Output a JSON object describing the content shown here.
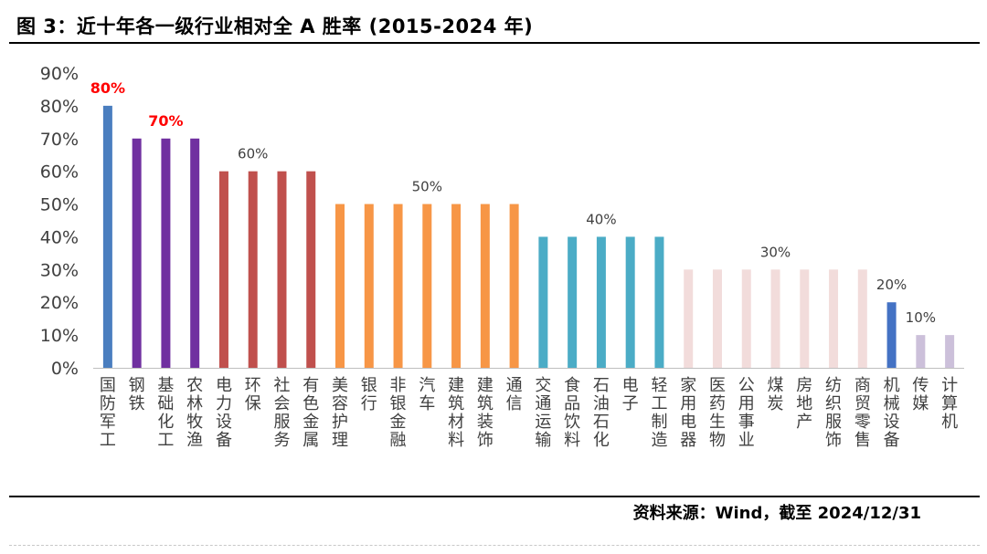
{
  "title": "图 3：近十年各一级行业相对全 A 胜率 (2015-2024 年)",
  "source": "资料来源：Wind，截至 2024/12/31",
  "chart_data": {
    "type": "bar",
    "title": "图 3：近十年各一级行业相对全 A 胜率 (2015-2024 年)",
    "xlabel": "",
    "ylabel": "",
    "ylim": [
      0,
      90
    ],
    "yticks": [
      "0%",
      "10%",
      "20%",
      "30%",
      "40%",
      "50%",
      "60%",
      "70%",
      "80%",
      "90%"
    ],
    "grid": false,
    "legend": "none",
    "categories": [
      "国防军工",
      "钢铁",
      "基础化工",
      "农林牧渔",
      "电力设备",
      "环保",
      "社会服务",
      "有色金属",
      "美容护理",
      "银行",
      "非银金融",
      "汽车",
      "建筑材料",
      "建筑装饰",
      "通信",
      "交通运输",
      "食品饮料",
      "石油石化",
      "电子",
      "轻工制造",
      "家用电器",
      "医药生物",
      "公用事业",
      "煤炭",
      "房地产",
      "纺织服饰",
      "商贸零售",
      "机械设备",
      "传媒",
      "计算机"
    ],
    "values": [
      80,
      70,
      70,
      70,
      60,
      60,
      60,
      60,
      50,
      50,
      50,
      50,
      50,
      50,
      50,
      40,
      40,
      40,
      40,
      40,
      30,
      30,
      30,
      30,
      30,
      30,
      30,
      20,
      10,
      10
    ],
    "colors": [
      "#4a7ebf",
      "#7030a0",
      "#7030a0",
      "#7030a0",
      "#c0504d",
      "#c0504d",
      "#c0504d",
      "#c0504d",
      "#f79646",
      "#f79646",
      "#f79646",
      "#f79646",
      "#f79646",
      "#f79646",
      "#f79646",
      "#4bacc6",
      "#4bacc6",
      "#4bacc6",
      "#4bacc6",
      "#4bacc6",
      "#f2dcdb",
      "#f2dcdb",
      "#f2dcdb",
      "#f2dcdb",
      "#f2dcdb",
      "#f2dcdb",
      "#f2dcdb",
      "#4472c4",
      "#ccc0da",
      "#ccc0da"
    ],
    "annotations": [
      {
        "text": "80%",
        "category": "国防军工",
        "value": 80,
        "color": "#ff0000",
        "bold": true
      },
      {
        "text": "70%",
        "category": "基础化工",
        "value": 70,
        "color": "#ff0000",
        "bold": true
      },
      {
        "text": "60%",
        "category": "环保",
        "value": 60,
        "color": "#404040",
        "bold": false
      },
      {
        "text": "50%",
        "category": "汽车",
        "value": 50,
        "color": "#404040",
        "bold": false
      },
      {
        "text": "40%",
        "category": "石油石化",
        "value": 40,
        "color": "#404040",
        "bold": false
      },
      {
        "text": "30%",
        "category": "煤炭",
        "value": 30,
        "color": "#404040",
        "bold": false
      },
      {
        "text": "20%",
        "category": "机械设备",
        "value": 20,
        "color": "#404040",
        "bold": false
      },
      {
        "text": "10%",
        "category": "传媒",
        "value": 10,
        "color": "#404040",
        "bold": false
      }
    ]
  }
}
